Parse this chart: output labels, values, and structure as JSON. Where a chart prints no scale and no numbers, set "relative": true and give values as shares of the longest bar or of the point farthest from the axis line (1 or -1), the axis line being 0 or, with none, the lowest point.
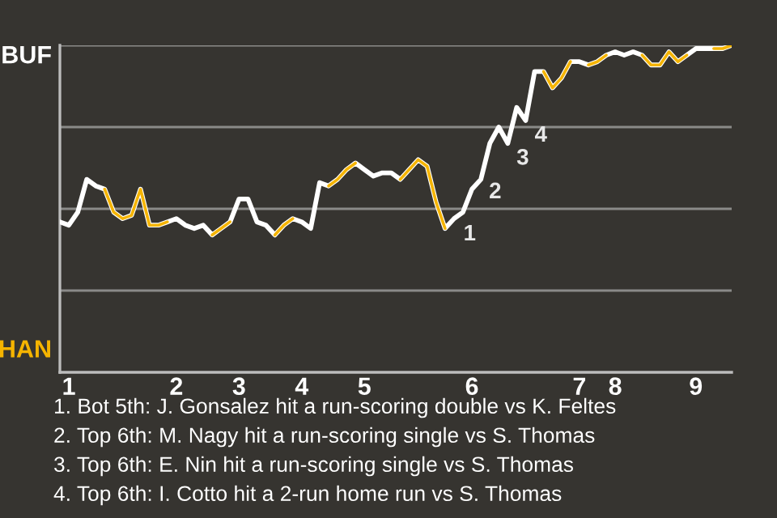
{
  "chart_data": {
    "type": "line",
    "relative": true,
    "categories": [
      null,
      "1",
      null,
      null,
      null,
      null,
      null,
      null,
      null,
      null,
      null,
      null,
      null,
      "2",
      null,
      null,
      null,
      null,
      null,
      null,
      "3",
      null,
      null,
      null,
      null,
      null,
      null,
      "4",
      null,
      null,
      null,
      null,
      null,
      null,
      "5",
      null,
      null,
      null,
      null,
      null,
      null,
      null,
      null,
      null,
      null,
      null,
      "6",
      null,
      null,
      null,
      null,
      null,
      null,
      null,
      null,
      null,
      null,
      null,
      "7",
      null,
      null,
      null,
      "8",
      null,
      null,
      null,
      null,
      null,
      null,
      null,
      null,
      "9",
      null,
      null,
      null,
      null
    ],
    "series": [
      {
        "color": "#ffffff",
        "values": [
          0.46,
          0.45,
          0.49,
          0.59,
          0.57,
          0.56,
          0.49,
          0.47,
          0.48,
          0.56,
          0.45,
          0.45,
          0.46,
          0.47,
          0.45,
          0.44,
          0.45,
          0.42,
          0.44,
          0.46,
          0.53,
          0.53,
          0.46,
          0.45,
          0.42,
          0.45,
          0.47,
          0.46,
          0.44,
          0.58,
          0.57,
          0.59,
          0.62,
          0.64,
          0.62,
          0.6,
          0.61,
          0.61,
          0.59,
          0.62,
          0.65,
          0.63,
          0.52,
          0.44,
          0.47,
          0.49,
          0.56,
          0.59,
          0.7,
          0.75,
          0.7,
          0.81,
          0.77,
          0.92,
          0.92,
          0.87,
          0.9,
          0.95,
          0.95,
          0.94,
          0.95,
          0.97,
          0.98,
          0.97,
          0.98,
          0.97,
          0.94,
          0.94,
          0.98,
          0.95,
          0.97,
          0.99,
          0.99,
          0.99,
          0.99,
          1
        ],
        "colors": [
          "#ffffff",
          "#ffffff",
          "#ffffff",
          "#ffffff",
          "#ffffff",
          "#ffffff",
          "#f5b400",
          "#f5b400",
          "#f5b400",
          "#f5b400",
          "#f5b400",
          "#f5b400",
          "#f5b400",
          "#ffffff",
          "#ffffff",
          "#ffffff",
          "#ffffff",
          "#ffffff",
          "#f5b400",
          "#f5b400",
          "#ffffff",
          "#ffffff",
          "#ffffff",
          "#ffffff",
          "#ffffff",
          "#f5b400",
          "#f5b400",
          "#ffffff",
          "#ffffff",
          "#ffffff",
          "#ffffff",
          "#f5b400",
          "#f5b400",
          "#f5b400",
          "#ffffff",
          "#ffffff",
          "#ffffff",
          "#ffffff",
          "#ffffff",
          "#f5b400",
          "#f5b400",
          "#f5b400",
          "#f5b400",
          "#f5b400",
          "#ffffff",
          "#ffffff",
          "#ffffff",
          "#ffffff",
          "#ffffff",
          "#ffffff",
          "#ffffff",
          "#ffffff",
          "#ffffff",
          "#ffffff",
          "#ffffff",
          "#f5b400",
          "#f5b400",
          "#f5b400",
          "#ffffff",
          "#ffffff",
          "#f5b400",
          "#f5b400",
          "#ffffff",
          "#ffffff",
          "#ffffff",
          "#ffffff",
          "#f5b400",
          "#f5b400",
          "#f5b400",
          "#f5b400",
          "#f5b400",
          "#ffffff",
          "#ffffff",
          "#ffffff",
          "#f5b400",
          "#f5b400"
        ]
      }
    ],
    "grid": "y",
    "annotations": [
      "BUF",
      "HAN",
      "1",
      "2",
      "3",
      "4",
      "1. Bot 5th: J. Gonsalez hit a run-scoring double vs K. Feltes",
      "2. Top 6th: M. Nagy hit a run-scoring single vs S. Thomas",
      "3. Top 6th: E. Nin hit a run-scoring single vs S. Thomas",
      "4. Top 6th: I. Cotto hit a 2-run home run vs S. Thomas"
    ]
  }
}
